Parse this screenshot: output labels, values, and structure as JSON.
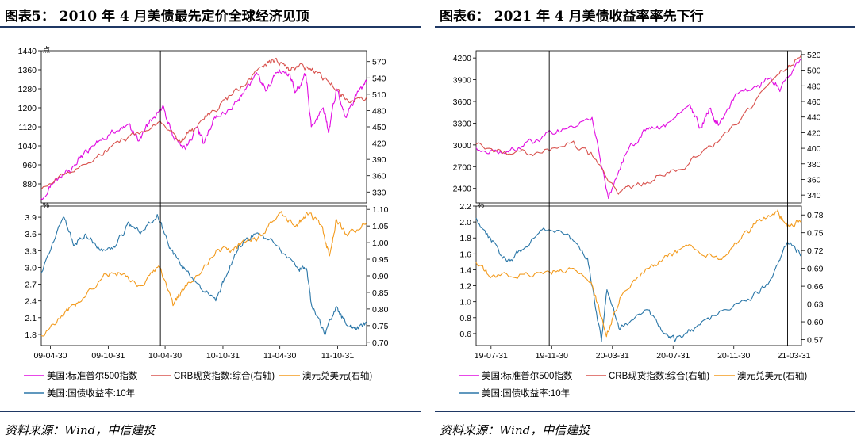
{
  "panels": [
    {
      "title": "图表5： 2010 年 4 月美债最先定价全球经济见顶",
      "source": "资料来源：Wind，中信建投"
    },
    {
      "title": "图表6： 2021 年 4 月美债收益率率先下行",
      "source": "资料来源：Wind，中信建投"
    }
  ],
  "colors": {
    "magenta": "#e10ce1",
    "red": "#d9534f",
    "orange": "#f39b1e",
    "blue": "#2b77a8"
  },
  "chart_data": [
    {
      "type": "line",
      "x_ticks": [
        "09-04-30",
        "09-10-31",
        "10-04-30",
        "10-10-31",
        "11-04-30",
        "11-10-31"
      ],
      "x_range": [
        "2009-04-01",
        "2012-01-31"
      ],
      "vline_dates": [
        "2010-04-15"
      ],
      "legend_position": "bottom",
      "legend": [
        "美国:标准普尔500指数",
        "CRB现货指数:综合(右轴)",
        "澳元兑美元(右轴)",
        "美国:国债收益率:10年"
      ],
      "top": {
        "left_unit": "点",
        "left_ylim": [
          800,
          1440
        ],
        "left_ticks": [
          "1440",
          "1360",
          "1280",
          "1200",
          "1120",
          "1040",
          "960",
          "880"
        ],
        "right_ylim": [
          310,
          590
        ],
        "right_ticks": [
          "570",
          "540",
          "510",
          "480",
          "450",
          "420",
          "390",
          "360",
          "330"
        ],
        "series": [
          {
            "name": "美国:标准普尔500指数",
            "axis": "left",
            "color": "magenta",
            "dates": [
              "2009-04-01",
              "2009-05-15",
              "2009-07-01",
              "2009-08-15",
              "2009-10-01",
              "2009-11-15",
              "2010-01-01",
              "2010-02-05",
              "2010-03-15",
              "2010-04-23",
              "2010-05-25",
              "2010-07-02",
              "2010-08-10",
              "2010-08-30",
              "2010-10-01",
              "2010-11-15",
              "2011-01-01",
              "2011-02-18",
              "2011-03-16",
              "2011-04-29",
              "2011-05-31",
              "2011-06-20",
              "2011-07-22",
              "2011-08-08",
              "2011-09-15",
              "2011-10-03",
              "2011-10-27",
              "2011-11-25",
              "2011-12-31",
              "2012-01-31"
            ],
            "values": [
              820,
              900,
              930,
              1010,
              1060,
              1100,
              1130,
              1060,
              1150,
              1210,
              1080,
              1030,
              1120,
              1050,
              1150,
              1190,
              1260,
              1340,
              1270,
              1360,
              1340,
              1270,
              1340,
              1120,
              1200,
              1100,
              1280,
              1160,
              1260,
              1310
            ]
          },
          {
            "name": "CRB现货指数:综合(右轴)",
            "axis": "right",
            "color": "red",
            "dates": [
              "2009-04-01",
              "2009-07-01",
              "2009-10-01",
              "2010-01-01",
              "2010-04-15",
              "2010-06-15",
              "2010-08-01",
              "2010-10-01",
              "2010-12-01",
              "2011-02-01",
              "2011-03-15",
              "2011-04-15",
              "2011-06-01",
              "2011-07-15",
              "2011-09-01",
              "2011-10-15",
              "2011-12-01",
              "2012-01-31"
            ],
            "values": [
              335,
              365,
              400,
              430,
              460,
              425,
              445,
              480,
              510,
              545,
              565,
              575,
              555,
              560,
              550,
              525,
              500,
              505
            ]
          }
        ]
      },
      "bottom": {
        "left_unit": "%",
        "left_ylim": [
          1.6,
          4.1
        ],
        "left_ticks": [
          "3.9",
          "3.6",
          "3.3",
          "3.0",
          "2.7",
          "2.4",
          "2.1",
          "1.8"
        ],
        "right_ylim": [
          0.69,
          1.11
        ],
        "right_ticks": [
          "1.10",
          "1.05",
          "1.00",
          "0.95",
          "0.90",
          "0.85",
          "0.80",
          "0.75",
          "0.70"
        ],
        "series": [
          {
            "name": "美国:国债收益率:10年",
            "axis": "left",
            "color": "blue",
            "dates": [
              "2009-04-01",
              "2009-06-10",
              "2009-07-15",
              "2009-08-20",
              "2009-10-05",
              "2009-11-25",
              "2010-01-05",
              "2010-02-10",
              "2010-04-05",
              "2010-05-20",
              "2010-07-05",
              "2010-08-25",
              "2010-10-08",
              "2010-11-15",
              "2010-12-20",
              "2011-02-10",
              "2011-04-10",
              "2011-06-25",
              "2011-07-25",
              "2011-08-10",
              "2011-09-22",
              "2011-10-27",
              "2011-11-25",
              "2011-12-31",
              "2012-01-31"
            ],
            "values": [
              2.9,
              3.9,
              3.4,
              3.6,
              3.3,
              3.4,
              3.8,
              3.6,
              3.95,
              3.3,
              2.95,
              2.6,
              2.4,
              2.9,
              3.4,
              3.6,
              3.45,
              3.0,
              2.95,
              2.3,
              1.8,
              2.3,
              2.0,
              1.9,
              2.0
            ]
          },
          {
            "name": "澳元兑美元(右轴)",
            "axis": "right",
            "color": "orange",
            "dates": [
              "2009-04-01",
              "2009-06-15",
              "2009-08-01",
              "2009-10-15",
              "2009-12-01",
              "2010-02-10",
              "2010-04-10",
              "2010-05-25",
              "2010-06-25",
              "2010-08-01",
              "2010-10-15",
              "2010-11-30",
              "2011-01-10",
              "2011-03-01",
              "2011-05-01",
              "2011-06-20",
              "2011-07-25",
              "2011-09-10",
              "2011-10-05",
              "2011-10-27",
              "2011-12-01",
              "2012-01-31"
            ],
            "values": [
              0.72,
              0.79,
              0.82,
              0.9,
              0.91,
              0.87,
              0.93,
              0.81,
              0.86,
              0.89,
              0.98,
              0.98,
              1.0,
              1.02,
              1.09,
              1.05,
              1.09,
              1.05,
              0.96,
              1.07,
              1.02,
              1.06
            ]
          }
        ]
      }
    },
    {
      "type": "line",
      "x_ticks": [
        "19-07-31",
        "19-11-30",
        "20-03-31",
        "20-07-31",
        "20-11-30",
        "21-03-31"
      ],
      "x_range": [
        "2019-07-01",
        "2021-04-15"
      ],
      "vline_dates": [
        "2019-11-25",
        "2021-03-18"
      ],
      "legend_position": "bottom",
      "legend": [
        "美国:标准普尔500指数",
        "CRB现货指数:综合(右轴)",
        "澳元兑美元(右轴)",
        "美国:国债收益率:10年"
      ],
      "top": {
        "left_unit": "",
        "left_ylim": [
          2200,
          4300
        ],
        "left_ticks": [
          "4200",
          "3900",
          "3600",
          "3300",
          "3000",
          "2700",
          "2400"
        ],
        "right_ylim": [
          330,
          525
        ],
        "right_ticks": [
          "520",
          "500",
          "480",
          "460",
          "440",
          "420",
          "400",
          "380",
          "360",
          "340"
        ],
        "series": [
          {
            "name": "美国:标准普尔500指数",
            "axis": "left",
            "color": "magenta",
            "dates": [
              "2019-07-01",
              "2019-08-15",
              "2019-10-01",
              "2019-11-15",
              "2020-01-01",
              "2020-02-19",
              "2020-03-23",
              "2020-04-29",
              "2020-06-08",
              "2020-07-15",
              "2020-09-02",
              "2020-09-23",
              "2020-10-12",
              "2020-10-30",
              "2020-12-01",
              "2021-01-15",
              "2021-02-12",
              "2021-03-04",
              "2021-04-15"
            ],
            "values": [
              2960,
              2880,
              2980,
              3120,
              3230,
              3380,
              2260,
              2900,
              3230,
              3250,
              3560,
              3240,
              3500,
              3270,
              3660,
              3800,
              3930,
              3770,
              4180
            ]
          },
          {
            "name": "CRB现货指数:综合(右轴)",
            "axis": "right",
            "color": "red",
            "dates": [
              "2019-07-01",
              "2019-09-01",
              "2019-11-01",
              "2020-01-10",
              "2020-02-20",
              "2020-04-10",
              "2020-05-10",
              "2020-07-01",
              "2020-09-01",
              "2020-11-01",
              "2021-01-01",
              "2021-03-01",
              "2021-04-15"
            ],
            "values": [
              405,
              392,
              395,
              408,
              390,
              343,
              350,
              365,
              380,
              410,
              450,
              495,
              520
            ]
          }
        ]
      },
      "bottom": {
        "left_unit": "%",
        "left_ylim": [
          0.45,
          2.2
        ],
        "left_ticks": [
          "2.2",
          "2.0",
          "1.8",
          "1.6",
          "1.4",
          "1.2",
          "1.0",
          "0.8",
          "0.6"
        ],
        "right_ylim": [
          0.56,
          0.795
        ],
        "right_ticks": [
          "0.78",
          "0.75",
          "0.72",
          "0.69",
          "0.66",
          "0.63",
          "0.60",
          "0.57"
        ],
        "series": [
          {
            "name": "美国:国债收益率:10年",
            "axis": "left",
            "color": "blue",
            "dates": [
              "2019-07-01",
              "2019-08-01",
              "2019-09-01",
              "2019-10-01",
              "2019-11-10",
              "2020-01-01",
              "2020-02-10",
              "2020-03-09",
              "2020-03-20",
              "2020-04-15",
              "2020-06-08",
              "2020-07-15",
              "2020-08-05",
              "2020-09-15",
              "2020-11-10",
              "2021-01-06",
              "2021-02-15",
              "2021-03-18",
              "2021-04-15"
            ],
            "values": [
              2.05,
              1.75,
              1.5,
              1.65,
              1.9,
              1.85,
              1.55,
              0.5,
              1.15,
              0.65,
              0.9,
              0.6,
              0.52,
              0.68,
              0.9,
              1.05,
              1.3,
              1.75,
              1.6
            ]
          },
          {
            "name": "澳元兑美元(右轴)",
            "axis": "right",
            "color": "orange",
            "dates": [
              "2019-07-01",
              "2019-08-01",
              "2019-10-01",
              "2019-11-30",
              "2020-01-10",
              "2020-02-20",
              "2020-03-19",
              "2020-04-15",
              "2020-06-10",
              "2020-07-20",
              "2020-09-01",
              "2020-10-30",
              "2020-12-15",
              "2021-01-15",
              "2021-02-25",
              "2021-03-18",
              "2021-04-15"
            ],
            "values": [
              0.7,
              0.676,
              0.68,
              0.68,
              0.69,
              0.66,
              0.575,
              0.64,
              0.69,
              0.71,
              0.73,
              0.705,
              0.74,
              0.77,
              0.785,
              0.76,
              0.77
            ]
          }
        ]
      }
    }
  ]
}
